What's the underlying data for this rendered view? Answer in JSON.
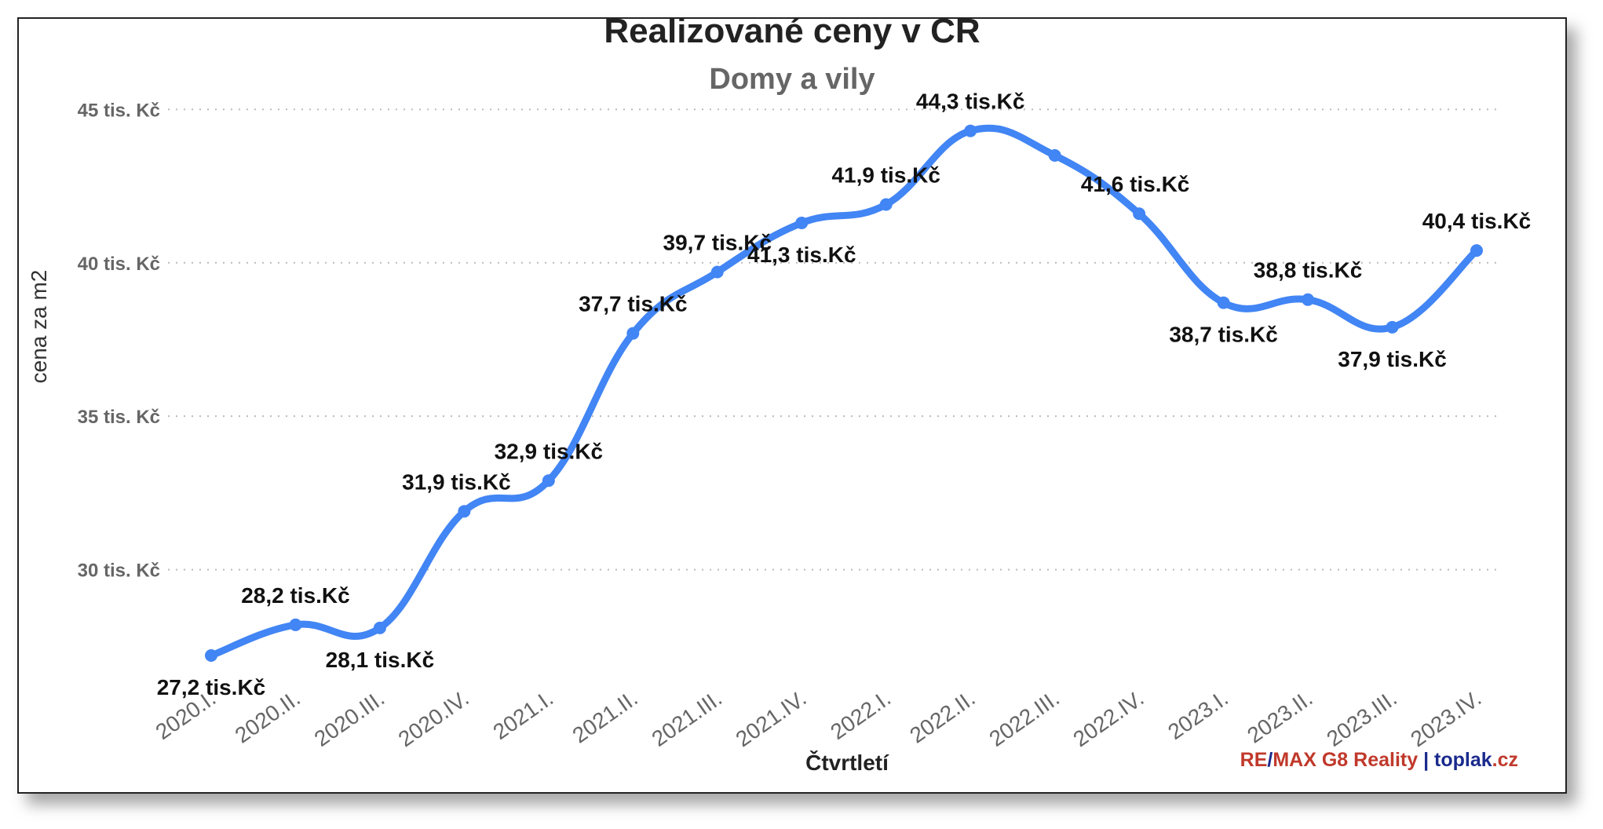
{
  "chart_data": {
    "type": "line",
    "title": "Realizované ceny v ČR",
    "subtitle": "Domy a vily",
    "xlabel": "Čtvrtletí",
    "ylabel": "cena za m2",
    "ylim": [
      25,
      45.7
    ],
    "yticks": [
      {
        "value": 30,
        "label": "30 tis. Kč"
      },
      {
        "value": 35,
        "label": "35 tis. Kč"
      },
      {
        "value": 40,
        "label": "40 tis. Kč"
      },
      {
        "value": 45,
        "label": "45 tis. Kč"
      }
    ],
    "categories": [
      "2020.I.",
      "2020.II.",
      "2020.III.",
      "2020.IV.",
      "2021.I.",
      "2021.II.",
      "2021.III.",
      "2021.IV.",
      "2022.I.",
      "2022.II.",
      "2022.III.",
      "2022.IV.",
      "2023.I.",
      "2023.II.",
      "2023.III.",
      "2023.IV."
    ],
    "values": [
      27.2,
      28.2,
      28.1,
      31.9,
      32.9,
      37.7,
      39.7,
      41.3,
      41.9,
      44.3,
      43.5,
      41.6,
      38.7,
      38.8,
      37.9,
      40.4
    ],
    "data_labels": [
      "27,2 tis.Kč",
      "28,2 tis.Kč",
      "28,1 tis.Kč",
      "31,9 tis.Kč",
      "32,9 tis.Kč",
      "37,7 tis.Kč",
      "39,7 tis.Kč",
      "41,3 tis.Kč",
      "41,9 tis.Kč",
      "44,3 tis.Kč",
      "",
      "41,6 tis.Kč",
      "38,7 tis.Kč",
      "38,8 tis.Kč",
      "37,9 tis.Kč",
      "40,4 tis.Kč"
    ],
    "grid": true,
    "line_color": "#4285f4"
  },
  "footer": {
    "brand_re": "RE",
    "brand_slash": "/",
    "brand_max": "MAX G8 Reality",
    "separator": " | ",
    "site_name": "toplak",
    "site_tld": ".cz",
    "colors": {
      "red": "#c0392b",
      "blue": "#1a2a8c"
    }
  }
}
